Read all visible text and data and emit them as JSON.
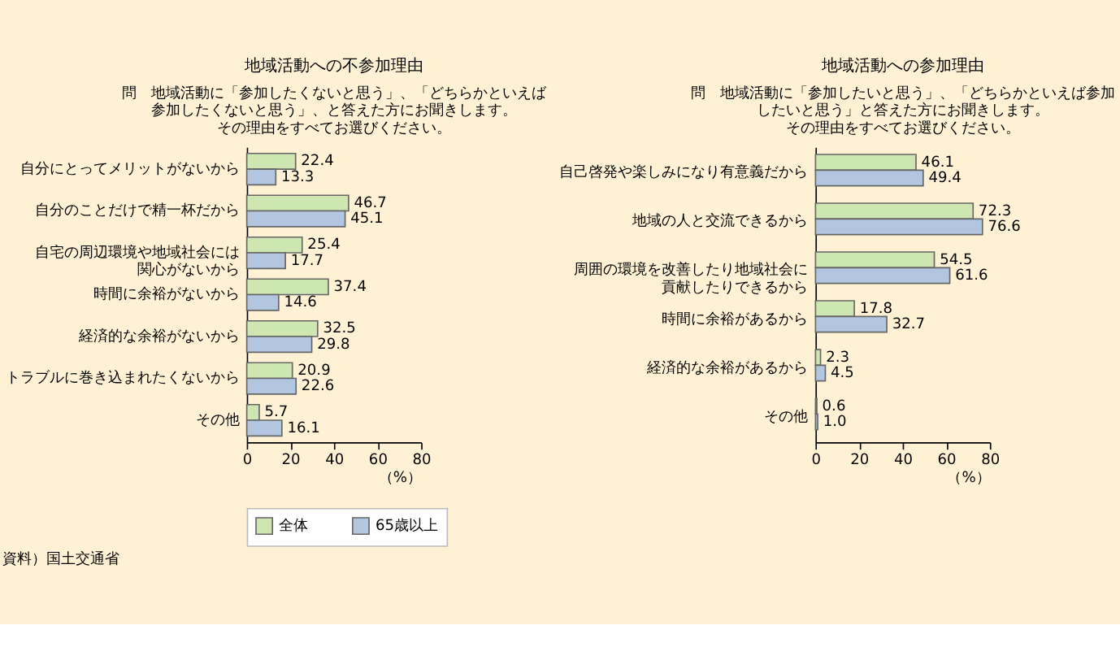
{
  "chart_data": [
    {
      "type": "bar",
      "orientation": "horizontal",
      "title": "地域活動への不参加理由",
      "subtitle": "問　地域活動に「参加したくないと思う」、「どちらかといえば参加したくないと思う」、と答えた方にお聞きします。その理由をすべてお選びください。",
      "categories": [
        "自分にとってメリットがないから",
        "自分のことだけで精一杯だから",
        "自宅の周辺環境や地域社会には関心がないから",
        "時間に余裕がないから",
        "経済的な余裕がないから",
        "トラブルに巻き込まれたくないから",
        "その他"
      ],
      "series": [
        {
          "name": "全体",
          "color": "#cde6b2",
          "values": [
            22.4,
            46.7,
            25.4,
            37.4,
            32.5,
            20.9,
            5.7
          ]
        },
        {
          "name": "65歳以上",
          "color": "#b2c6e0",
          "values": [
            13.3,
            45.1,
            17.7,
            14.6,
            29.8,
            22.6,
            16.1
          ]
        }
      ],
      "xlim": [
        0,
        80
      ],
      "xticks": [
        0,
        20,
        40,
        60,
        80
      ],
      "xlabel": "（%）",
      "data_labels": true,
      "legend": "bottom",
      "grid": false,
      "annotations": [
        "資料）国土交通省"
      ]
    },
    {
      "type": "bar",
      "orientation": "horizontal",
      "title": "地域活動への参加理由",
      "subtitle": "問　地域活動に「参加したいと思う」、「どちらかといえば参加したいと思う」と答えた方にお聞きします。その理由をすべてお選びください。",
      "categories": [
        "自己啓発や楽しみになり有意義だから",
        "地域の人と交流できるから",
        "周囲の環境を改善したり地域社会に貢献したりできるから",
        "時間に余裕があるから",
        "経済的な余裕があるから",
        "その他"
      ],
      "series": [
        {
          "name": "全体",
          "color": "#cde6b2",
          "values": [
            46.1,
            72.3,
            54.5,
            17.8,
            2.3,
            0.6
          ],
          "value_labels": [
            "46.1",
            "72.3",
            "54.5",
            "17.8",
            "2.3",
            "0.6"
          ]
        },
        {
          "name": "65歳以上",
          "color": "#b2c6e0",
          "values": [
            49.4,
            76.6,
            61.6,
            32.7,
            4.5,
            1.0
          ],
          "value_labels": [
            "49.4",
            "76.6",
            "61.6",
            "32.7",
            "4.5",
            "1.0"
          ]
        }
      ],
      "xlim": [
        0,
        80
      ],
      "xticks": [
        0,
        20,
        40,
        60,
        80
      ],
      "xlabel": "（%）",
      "data_labels": true,
      "legend": "bottom",
      "grid": false
    }
  ]
}
